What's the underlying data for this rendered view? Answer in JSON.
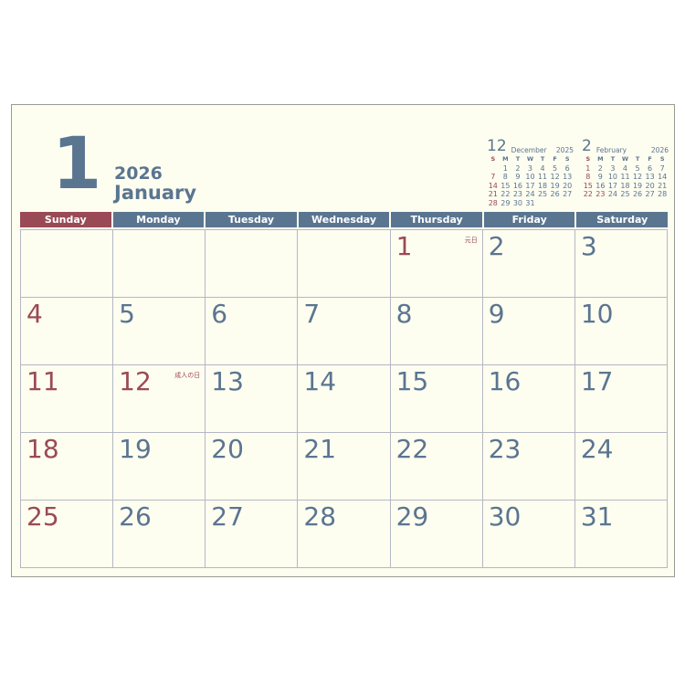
{
  "header": {
    "month_number": "1",
    "year": "2026",
    "month_name": "January"
  },
  "mini_calendars": [
    {
      "month_number": "12",
      "month_name": "December",
      "year": "2025",
      "weekdays": [
        "S",
        "M",
        "T",
        "W",
        "T",
        "F",
        "S"
      ],
      "weeks": [
        [
          null,
          1,
          2,
          3,
          4,
          5,
          6
        ],
        [
          7,
          8,
          9,
          10,
          11,
          12,
          13
        ],
        [
          14,
          15,
          16,
          17,
          18,
          19,
          20
        ],
        [
          21,
          22,
          23,
          24,
          25,
          26,
          27
        ],
        [
          28,
          29,
          30,
          31,
          null,
          null,
          null
        ]
      ],
      "red_days": []
    },
    {
      "month_number": "2",
      "month_name": "February",
      "year": "2026",
      "weekdays": [
        "S",
        "M",
        "T",
        "W",
        "T",
        "F",
        "S"
      ],
      "weeks": [
        [
          1,
          2,
          3,
          4,
          5,
          6,
          7
        ],
        [
          8,
          9,
          10,
          11,
          12,
          13,
          14
        ],
        [
          15,
          16,
          17,
          18,
          19,
          20,
          21
        ],
        [
          22,
          23,
          24,
          25,
          26,
          27,
          28
        ]
      ],
      "red_days": [
        23
      ]
    }
  ],
  "weekdays": [
    "Sunday",
    "Monday",
    "Tuesday",
    "Wednesday",
    "Thursday",
    "Friday",
    "Saturday"
  ],
  "weeks": [
    [
      null,
      null,
      null,
      null,
      1,
      2,
      3
    ],
    [
      4,
      5,
      6,
      7,
      8,
      9,
      10
    ],
    [
      11,
      12,
      13,
      14,
      15,
      16,
      17
    ],
    [
      18,
      19,
      20,
      21,
      22,
      23,
      24
    ],
    [
      25,
      26,
      27,
      28,
      29,
      30,
      31
    ]
  ],
  "holidays": {
    "1": "元日",
    "12": "成人の日"
  },
  "colors": {
    "blue": "#5a7590",
    "red": "#9a4a55",
    "background": "#fdfdf0"
  }
}
